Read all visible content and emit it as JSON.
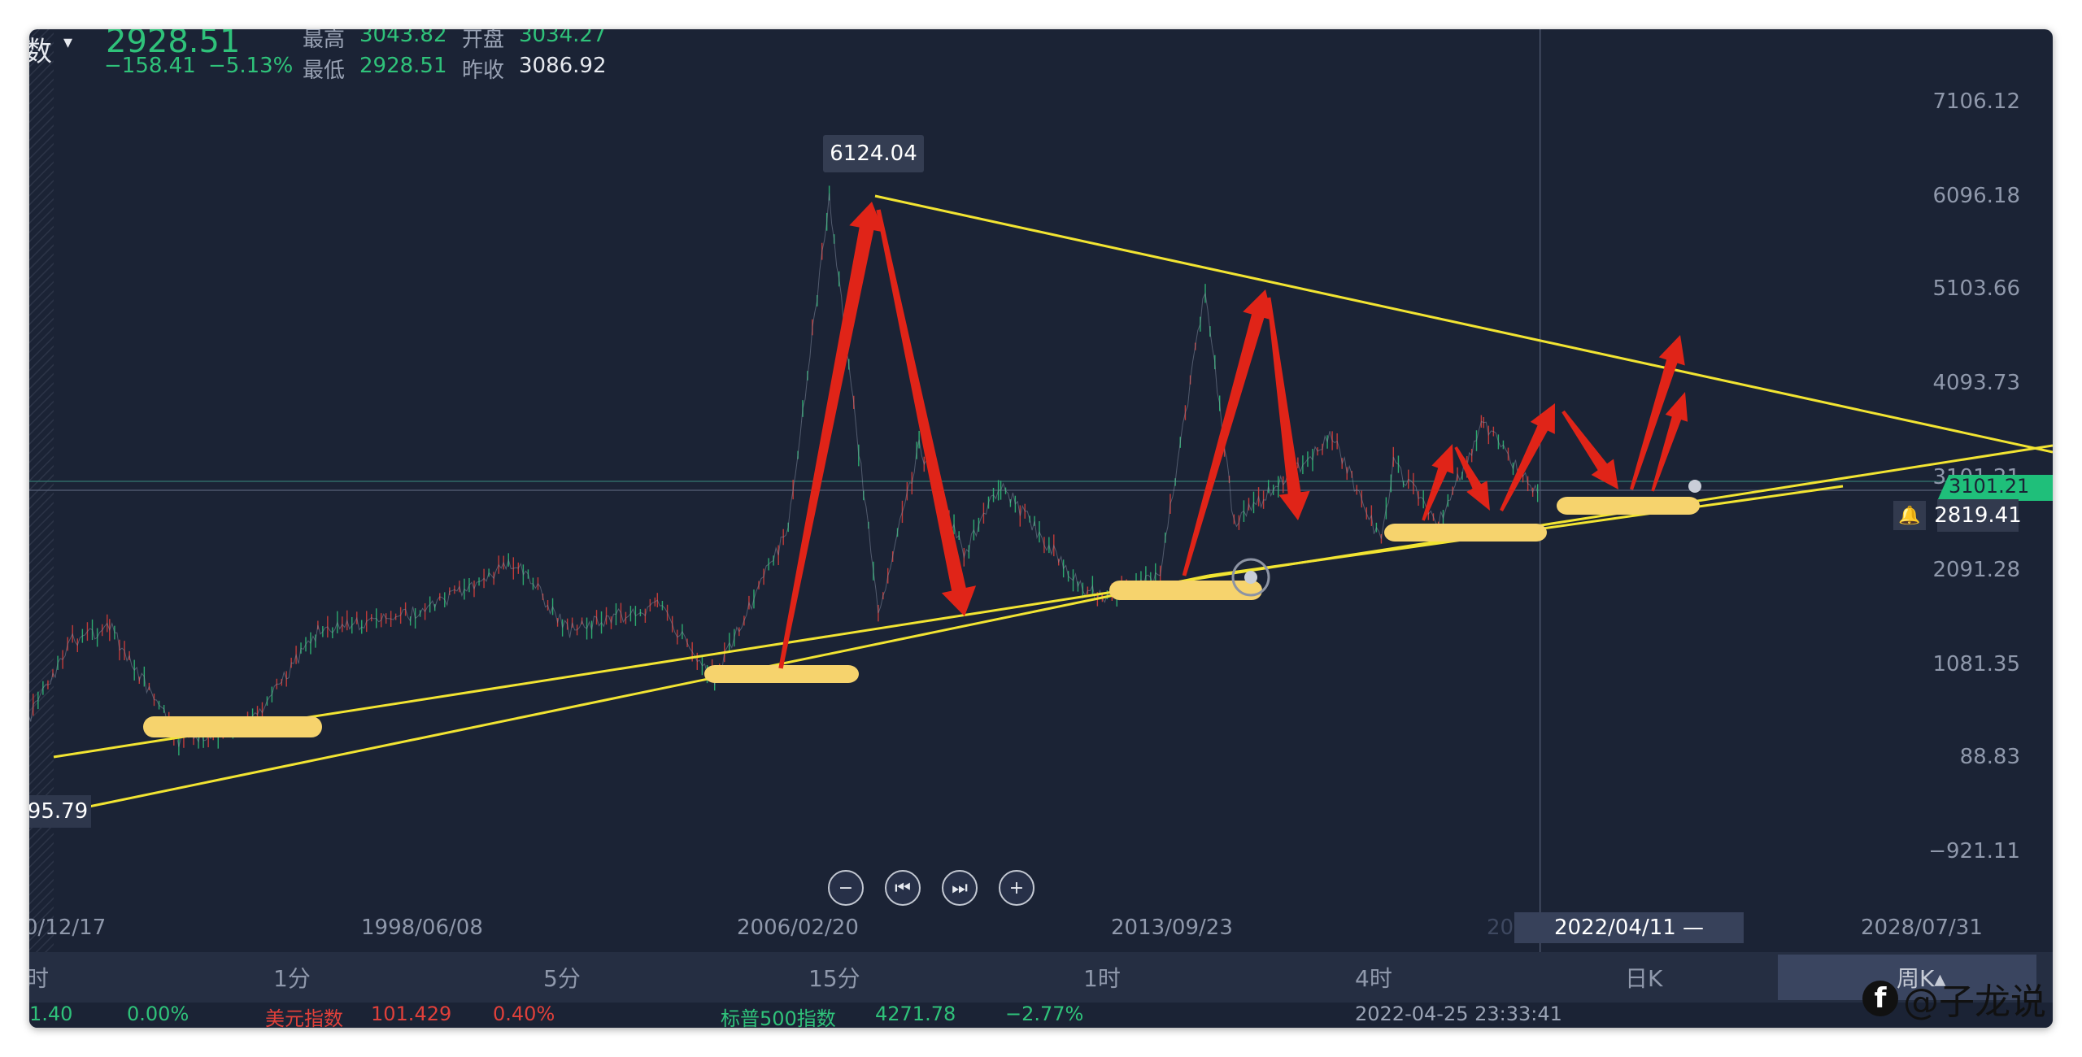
{
  "header": {
    "left_glyph": "数",
    "caret": "▾",
    "value": "2928.51",
    "change": "−158.41",
    "change_pct": "−5.13%",
    "high_label": "最高",
    "high": "3043.82",
    "open_label": "开盘",
    "open": "3034.27",
    "low_label": "最低",
    "low": "2928.51",
    "prev_close_label": "昨收",
    "prev_close": "3086.92"
  },
  "chart_data": {
    "type": "line",
    "y_ticks": [
      "7106.12",
      "6096.18",
      "5103.66",
      "4093.73",
      "3101.21",
      "2091.28",
      "1081.35",
      "88.83",
      "−921.11"
    ],
    "x_ticks": [
      "0/12/17",
      "1998/06/08",
      "2006/02/20",
      "2013/09/23",
      "2022/04/11 —",
      "2028/07/31"
    ],
    "x_partial_label": "202",
    "series": [
      {
        "values": [
          {
            "x": "1990/12/19",
            "y": 96
          },
          {
            "x": "1992/05",
            "y": 1400
          },
          {
            "x": "1993/02",
            "y": 1550
          },
          {
            "x": "1994/07",
            "y": 330
          },
          {
            "x": "1996/01",
            "y": 520
          },
          {
            "x": "1997/05",
            "y": 1500
          },
          {
            "x": "1999/06",
            "y": 1700
          },
          {
            "x": "2001/06",
            "y": 2240
          },
          {
            "x": "2002/06",
            "y": 1500
          },
          {
            "x": "2004/04",
            "y": 1780
          },
          {
            "x": "2005/06",
            "y": 998
          },
          {
            "x": "2006/12",
            "y": 2600
          },
          {
            "x": "2007/10/16",
            "y": 6124.04
          },
          {
            "x": "2008/10",
            "y": 1664
          },
          {
            "x": "2009/08",
            "y": 3478
          },
          {
            "x": "2010/07",
            "y": 2320
          },
          {
            "x": "2011/04",
            "y": 3067
          },
          {
            "x": "2012/12",
            "y": 1949
          },
          {
            "x": "2013/06",
            "y": 1849
          },
          {
            "x": "2014/07",
            "y": 2100
          },
          {
            "x": "2015/06",
            "y": 5178
          },
          {
            "x": "2016/01",
            "y": 2638
          },
          {
            "x": "2018/01",
            "y": 3587
          },
          {
            "x": "2019/01",
            "y": 2440
          },
          {
            "x": "2019/04",
            "y": 3288
          },
          {
            "x": "2020/03",
            "y": 2646
          },
          {
            "x": "2021/02",
            "y": 3731
          },
          {
            "x": "2022/04/11",
            "y": 2928.51
          }
        ]
      }
    ],
    "peak_label": "6124.04",
    "low_label": "95.79",
    "current_price": "2819.41",
    "line_tag": "3101.21"
  },
  "controls": {
    "zoom_out": "−",
    "prev": "⏮",
    "next": "⏭",
    "zoom_in": "+"
  },
  "periods": [
    "时",
    "1分",
    "5分",
    "15分",
    "1时",
    "4时",
    "日K",
    "周K"
  ],
  "period_selected_suffix": "▴",
  "ticker": [
    {
      "text": "1.40",
      "cls": "green"
    },
    {
      "text": "0.00%",
      "cls": "green"
    },
    {
      "text": "美元指数",
      "cls": "red"
    },
    {
      "text": "101.429",
      "cls": "red"
    },
    {
      "text": "0.40%",
      "cls": "red"
    },
    {
      "text": "标普500指数",
      "cls": "green"
    },
    {
      "text": "4271.78",
      "cls": "green"
    },
    {
      "text": "−2.77%",
      "cls": "green"
    },
    {
      "text": "2022-04-25 23:33:41",
      "cls": "lbl"
    }
  ],
  "watermark": {
    "icon": "f",
    "text": "@子龙说"
  },
  "colors": {
    "bg": "#1b2335",
    "trend": "#f2e432",
    "arrow": "#e02418",
    "highlight": "#f6d36d",
    "up": "#2fc27a",
    "down": "#e0403a"
  }
}
